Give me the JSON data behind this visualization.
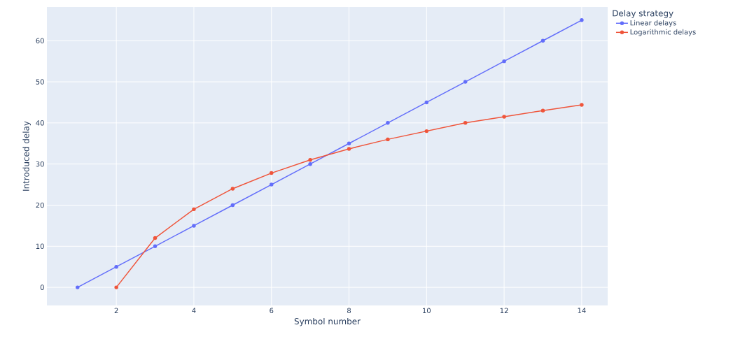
{
  "chart_data": {
    "type": "line",
    "xlabel": "Symbol number",
    "ylabel": "Introduced delay",
    "legend_title": "Delay strategy",
    "xlim": [
      0.21,
      14.67
    ],
    "ylim": [
      -4.4,
      68.2
    ],
    "xticks": [
      2,
      4,
      6,
      8,
      10,
      12,
      14
    ],
    "yticks": [
      0,
      10,
      20,
      30,
      40,
      50,
      60
    ],
    "grid": true,
    "legend": "top right",
    "marker": "circle",
    "line_style": "solid",
    "series": [
      {
        "name": "Linear delays",
        "color": "#636efa",
        "x": [
          1,
          2,
          3,
          4,
          5,
          6,
          7,
          8,
          9,
          10,
          11,
          12,
          13,
          14
        ],
        "values": [
          0,
          5,
          10,
          15,
          20,
          25,
          30,
          35,
          40,
          45,
          50,
          55,
          60,
          65
        ]
      },
      {
        "name": "Logarithmic delays",
        "color": "#ef553b",
        "x": [
          2,
          3,
          4,
          5,
          6,
          7,
          8,
          9,
          10,
          11,
          12,
          13,
          14
        ],
        "values": [
          0,
          12,
          19,
          24,
          27.8,
          31,
          33.7,
          36,
          38,
          40,
          41.5,
          43,
          44.4
        ]
      }
    ]
  }
}
